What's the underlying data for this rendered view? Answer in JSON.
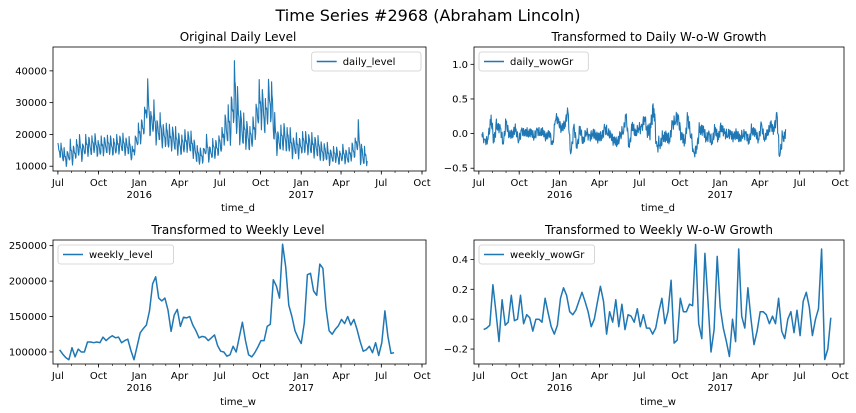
{
  "figure": {
    "title": "Time Series #2968 (Abraham Lincoln)",
    "line_color": "#1f77b4"
  },
  "chart_data": [
    {
      "type": "line",
      "title": "Original Daily Level",
      "xlabel": "time_d",
      "legend": "daily_level",
      "legend_position": "upper-right",
      "x_start": "2015-07-01",
      "x_step_days": 1,
      "xlim": [
        "2015-06-20",
        "2017-10-10"
      ],
      "ylim": [
        8500,
        47500
      ],
      "yticks": [
        10000,
        20000,
        30000,
        40000
      ],
      "xticks": [
        {
          "date": "2015-07-01",
          "label": "Jul",
          "year": ""
        },
        {
          "date": "2015-10-01",
          "label": "Oct",
          "year": ""
        },
        {
          "date": "2016-01-01",
          "label": "Jan",
          "year": "2016"
        },
        {
          "date": "2016-04-01",
          "label": "Apr",
          "year": ""
        },
        {
          "date": "2016-07-01",
          "label": "Jul",
          "year": ""
        },
        {
          "date": "2016-10-01",
          "label": "Oct",
          "year": ""
        },
        {
          "date": "2017-01-01",
          "label": "Jan",
          "year": "2017"
        },
        {
          "date": "2017-04-01",
          "label": "Apr",
          "year": ""
        },
        {
          "date": "2017-07-01",
          "label": "Jul",
          "year": ""
        },
        {
          "date": "2017-10-01",
          "label": "Oct",
          "year": ""
        }
      ],
      "weekly_anchor": [
        14800,
        15000,
        13000,
        12300,
        14500,
        13500,
        15500,
        16000,
        14500,
        16500,
        16000,
        16500,
        17000,
        15500,
        16000,
        16500,
        16500,
        16500,
        16000,
        16500,
        17000,
        17000,
        16000,
        16500,
        13500,
        17000,
        19500,
        21000,
        24000,
        31000,
        23000,
        25000,
        20500,
        22000,
        19000,
        20000,
        18500,
        19000,
        18000,
        17000,
        16500,
        17500,
        18000,
        17000,
        15500,
        13500,
        13000,
        13500,
        16500,
        13500,
        15500,
        15000,
        16500,
        17500,
        22000,
        21500,
        24000,
        33000,
        27000,
        22500,
        21000,
        20000,
        18500,
        20000,
        24500,
        29000,
        28500,
        25000,
        30000,
        30500,
        21000,
        17500,
        18500,
        19000,
        18500,
        17500,
        16000,
        16500,
        15500,
        17500,
        17000,
        17000,
        16500,
        16000,
        16000,
        14500,
        14500,
        14000,
        13000,
        13500,
        13500,
        12500,
        14000,
        13000,
        13000,
        14500,
        15500,
        19000,
        14000,
        13000
      ],
      "daily_amplitude": [
        2500,
        2500,
        2500,
        2800,
        3500,
        3000,
        3000,
        3500,
        3000,
        3000,
        3500,
        3000,
        3000,
        3000,
        3000,
        3000,
        3000,
        3000,
        3000,
        3000,
        3000,
        3000,
        3000,
        3000,
        2500,
        3000,
        3500,
        4000,
        4500,
        6000,
        5000,
        5000,
        4500,
        4500,
        4000,
        4000,
        4000,
        4000,
        4000,
        3500,
        3500,
        3500,
        3500,
        3500,
        3000,
        3000,
        2500,
        2500,
        3000,
        3000,
        3000,
        3000,
        3500,
        4000,
        5000,
        7000,
        8000,
        11000,
        7000,
        6000,
        5000,
        4500,
        4000,
        5000,
        6000,
        7000,
        6500,
        6000,
        7000,
        7000,
        5000,
        4000,
        4000,
        4500,
        4000,
        4000,
        3500,
        3500,
        3500,
        3500,
        3500,
        3500,
        3500,
        3500,
        3500,
        3000,
        3000,
        3000,
        2500,
        2500,
        2500,
        2500,
        2500,
        2500,
        2500,
        3000,
        3500,
        5000,
        3500,
        2800
      ]
    },
    {
      "type": "line",
      "title": "Transformed to Daily W-o-W Growth",
      "xlabel": "time_d",
      "legend": "daily_wowGr",
      "legend_position": "upper-left",
      "x_start": "2015-07-08",
      "x_step_days": 1,
      "xlim": [
        "2015-06-20",
        "2017-10-10"
      ],
      "ylim": [
        -0.54,
        1.25
      ],
      "yticks": [
        -0.5,
        0.0,
        0.5,
        1.0
      ],
      "ytick_labels": [
        "−0.5",
        "0.0",
        "0.5",
        "1.0"
      ],
      "xticks": [
        {
          "date": "2015-07-01",
          "label": "Jul",
          "year": ""
        },
        {
          "date": "2015-10-01",
          "label": "Oct",
          "year": ""
        },
        {
          "date": "2016-01-01",
          "label": "Jan",
          "year": "2016"
        },
        {
          "date": "2016-04-01",
          "label": "Apr",
          "year": ""
        },
        {
          "date": "2016-07-01",
          "label": "Jul",
          "year": ""
        },
        {
          "date": "2016-10-01",
          "label": "Oct",
          "year": ""
        },
        {
          "date": "2017-01-01",
          "label": "Jan",
          "year": "2017"
        },
        {
          "date": "2017-04-01",
          "label": "Apr",
          "year": ""
        },
        {
          "date": "2017-07-01",
          "label": "Jul",
          "year": ""
        },
        {
          "date": "2017-10-01",
          "label": "Oct",
          "year": ""
        }
      ]
    },
    {
      "type": "line",
      "title": "Transformed to Weekly Level",
      "xlabel": "time_w",
      "legend": "weekly_level",
      "legend_position": "upper-left",
      "x_start": "2015-07-05",
      "x_step_days": 7,
      "xlim": [
        "2015-06-20",
        "2017-10-10"
      ],
      "ylim": [
        83000,
        258000
      ],
      "yticks": [
        100000,
        150000,
        200000,
        250000
      ],
      "xticks": [
        {
          "date": "2015-07-01",
          "label": "Jul",
          "year": ""
        },
        {
          "date": "2015-10-01",
          "label": "Oct",
          "year": ""
        },
        {
          "date": "2016-01-01",
          "label": "Jan",
          "year": "2016"
        },
        {
          "date": "2016-04-01",
          "label": "Apr",
          "year": ""
        },
        {
          "date": "2016-07-01",
          "label": "Jul",
          "year": ""
        },
        {
          "date": "2016-10-01",
          "label": "Oct",
          "year": ""
        },
        {
          "date": "2017-01-01",
          "label": "Jan",
          "year": "2017"
        },
        {
          "date": "2017-04-01",
          "label": "Apr",
          "year": ""
        },
        {
          "date": "2017-07-01",
          "label": "Jul",
          "year": ""
        },
        {
          "date": "2017-10-01",
          "label": "Oct",
          "year": ""
        }
      ],
      "values": [
        103000,
        97000,
        92000,
        89000,
        106000,
        93000,
        104000,
        100000,
        100000,
        114000,
        114000,
        113000,
        114000,
        113000,
        121000,
        116000,
        120000,
        123000,
        120000,
        121000,
        113000,
        116000,
        118000,
        102000,
        89000,
        108000,
        127000,
        133000,
        138000,
        158000,
        196000,
        206000,
        176000,
        172000,
        176000,
        159000,
        129000,
        152000,
        160000,
        136000,
        149000,
        148000,
        150000,
        138000,
        130000,
        120000,
        122000,
        121000,
        116000,
        120000,
        124000,
        109000,
        101000,
        100000,
        94000,
        96000,
        108000,
        100000,
        121000,
        142000,
        116000,
        96000,
        93000,
        99000,
        107000,
        116000,
        116000,
        136000,
        139000,
        202000,
        193000,
        176000,
        252000,
        220000,
        166000,
        150000,
        130000,
        120000,
        112000,
        141000,
        209000,
        211000,
        186000,
        180000,
        224000,
        218000,
        162000,
        130000,
        125000,
        132000,
        137000,
        146000,
        140000,
        150000,
        138000,
        146000,
        132000,
        115000,
        101000,
        103000,
        108000,
        99000,
        113000,
        95000,
        113000,
        158000,
        122000,
        98000,
        99000
      ]
    },
    {
      "type": "line",
      "title": "Transformed to Weekly W-o-W Growth",
      "xlabel": "time_w",
      "legend": "weekly_wowGr",
      "legend_position": "upper-left",
      "x_start": "2015-07-12",
      "x_step_days": 7,
      "xlim": [
        "2015-06-20",
        "2017-10-10"
      ],
      "ylim": [
        -0.3,
        0.53
      ],
      "yticks": [
        -0.2,
        0.0,
        0.2,
        0.4
      ],
      "ytick_labels": [
        "−0.2",
        "0.0",
        "0.2",
        "0.4"
      ],
      "xticks": [
        {
          "date": "2015-07-01",
          "label": "Jul",
          "year": ""
        },
        {
          "date": "2015-10-01",
          "label": "Oct",
          "year": ""
        },
        {
          "date": "2016-01-01",
          "label": "Jan",
          "year": "2016"
        },
        {
          "date": "2016-04-01",
          "label": "Apr",
          "year": ""
        },
        {
          "date": "2016-07-01",
          "label": "Jul",
          "year": ""
        },
        {
          "date": "2016-10-01",
          "label": "Oct",
          "year": ""
        },
        {
          "date": "2017-01-01",
          "label": "Jan",
          "year": "2017"
        },
        {
          "date": "2017-04-01",
          "label": "Apr",
          "year": ""
        },
        {
          "date": "2017-07-01",
          "label": "Jul",
          "year": ""
        },
        {
          "date": "2017-10-01",
          "label": "Oct",
          "year": ""
        }
      ],
      "values": [
        -0.07,
        -0.06,
        -0.04,
        0.23,
        0.05,
        -0.15,
        0.13,
        -0.04,
        -0.02,
        0.16,
        -0.01,
        0.0,
        0.16,
        -0.03,
        0.03,
        0.01,
        -0.08,
        0.0,
        0.0,
        -0.02,
        0.14,
        0.04,
        -0.05,
        -0.1,
        -0.04,
        0.14,
        0.21,
        0.16,
        0.05,
        0.03,
        0.06,
        0.12,
        0.18,
        0.12,
        0.05,
        -0.05,
        0.0,
        0.11,
        0.22,
        0.12,
        -0.1,
        0.05,
        -0.02,
        0.13,
        -0.05,
        0.1,
        -0.07,
        0.03,
        0.02,
        -0.02,
        0.07,
        -0.05,
        0.03,
        -0.06,
        -0.06,
        -0.1,
        -0.06,
        0.05,
        0.14,
        -0.03,
        0.05,
        0.26,
        -0.16,
        -0.14,
        0.14,
        0.05,
        0.05,
        0.1,
        0.09,
        0.5,
        -0.03,
        -0.13,
        0.44,
        0.13,
        -0.22,
        -0.07,
        0.42,
        0.08,
        -0.06,
        -0.15,
        -0.25,
        0.0,
        -0.15,
        0.47,
        0.02,
        -0.06,
        0.21,
        0.0,
        -0.17,
        -0.08,
        0.05,
        0.05,
        0.03,
        -0.03,
        0.02,
        -0.03,
        0.14,
        -0.08,
        -0.13,
        0.0,
        0.05,
        -0.09,
        0.06,
        -0.11,
        0.12,
        0.18,
        0.08,
        -0.11,
        0.0,
        0.07,
        0.47,
        -0.27,
        -0.2,
        0.01
      ]
    }
  ]
}
